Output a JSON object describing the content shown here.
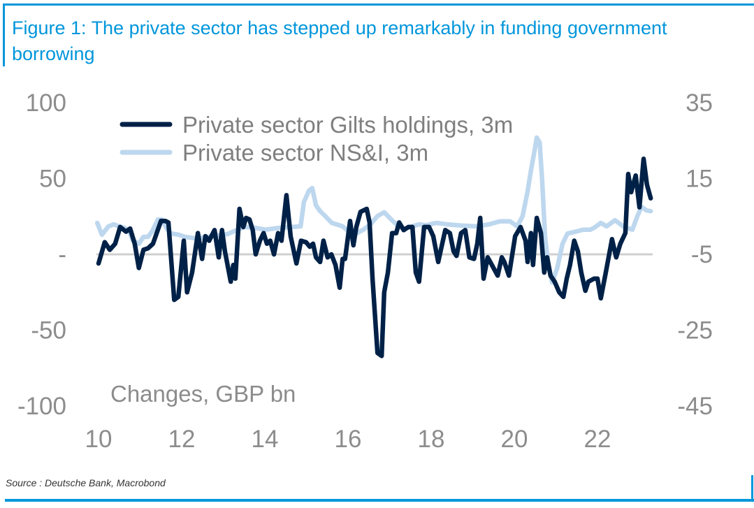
{
  "title": "Figure 1: The private sector has stepped up remarkably in funding government borrowing",
  "source": "Source : Deutsche Bank, Macrobond",
  "colors": {
    "frame": "#0096DB",
    "gilts": "#002147",
    "nsi": "#BDD7EE",
    "zero": "#D0D0D0"
  },
  "chart_data": {
    "type": "line",
    "title": "Figure 1: The private sector has stepped up remarkably in funding government borrowing",
    "unit_label": "Changes, GBP bn",
    "xlabel": "",
    "xlim": [
      10,
      23.5
    ],
    "x_ticks": [
      10,
      12,
      14,
      16,
      18,
      20,
      22
    ],
    "y_left": {
      "lim": [
        -100,
        100
      ],
      "ticks": [
        100,
        50,
        0,
        -50,
        -100
      ],
      "tick_labels": [
        "100",
        "50",
        "-",
        "-50",
        "-100"
      ]
    },
    "y_right": {
      "lim": [
        -45,
        35
      ],
      "ticks": [
        35,
        15,
        -5,
        -25,
        -45
      ],
      "tick_labels": [
        "35",
        "15",
        "-5",
        "-25",
        "-45"
      ]
    },
    "grid": false,
    "legend_position": "top-center",
    "series": [
      {
        "name": "Private sector Gilts holdings, 3m",
        "axis": "left",
        "x": [
          10.0,
          10.15,
          10.27,
          10.4,
          10.52,
          10.66,
          10.76,
          10.87,
          10.97,
          11.08,
          11.19,
          11.31,
          11.5,
          11.61,
          11.68,
          11.82,
          11.92,
          12.05,
          12.13,
          12.25,
          12.39,
          12.49,
          12.57,
          12.66,
          12.79,
          12.89,
          12.97,
          13.04,
          13.18,
          13.24,
          13.29,
          13.39,
          13.48,
          13.55,
          13.63,
          13.71,
          13.78,
          13.88,
          13.97,
          14.05,
          14.13,
          14.22,
          14.32,
          14.4,
          14.52,
          14.62,
          14.76,
          14.87,
          14.99,
          15.08,
          15.16,
          15.23,
          15.33,
          15.41,
          15.51,
          15.6,
          15.7,
          15.8,
          15.87,
          15.93,
          16.05,
          16.13,
          16.2,
          16.3,
          16.45,
          16.52,
          16.59,
          16.71,
          16.81,
          16.87,
          16.96,
          17.06,
          17.16,
          17.23,
          17.34,
          17.45,
          17.55,
          17.63,
          17.71,
          17.83,
          17.95,
          18.05,
          18.17,
          18.25,
          18.34,
          18.45,
          18.54,
          18.61,
          18.72,
          18.82,
          18.92,
          19.03,
          19.11,
          19.18,
          19.26,
          19.36,
          19.46,
          19.6,
          19.7,
          19.76,
          19.87,
          20.02,
          20.15,
          20.27,
          20.32,
          20.4,
          20.45,
          20.54,
          20.64,
          20.72,
          20.79,
          20.87,
          20.97,
          21.08,
          21.18,
          21.26,
          21.34,
          21.44,
          21.53,
          21.61,
          21.71,
          21.78,
          21.92,
          22.0,
          22.08,
          22.2,
          22.35,
          22.45,
          22.55,
          22.67,
          22.74,
          22.81,
          22.92,
          23.01,
          23.11,
          23.19,
          23.28
        ],
        "y": [
          -6,
          8,
          3,
          7,
          18,
          15,
          17,
          7,
          -9,
          3,
          4,
          7,
          22,
          22,
          21,
          -30,
          -28,
          9,
          -25,
          -12,
          14,
          -3,
          12,
          9,
          16,
          -2,
          16,
          2,
          -18,
          -7,
          -16,
          30,
          18,
          24,
          23,
          16,
          0,
          9,
          14,
          7,
          9,
          0,
          14,
          9,
          39,
          12,
          -6,
          9,
          8,
          5,
          7,
          -2,
          -5,
          9,
          -2,
          0,
          -7,
          -22,
          -3,
          -3,
          22,
          6,
          18,
          28,
          30,
          21,
          -16,
          -65,
          -67,
          -25,
          -12,
          14,
          14,
          21,
          16,
          18,
          18,
          -12,
          -18,
          18,
          18,
          12,
          -5,
          5,
          16,
          14,
          2,
          -1,
          14,
          16,
          -2,
          -3,
          7,
          24,
          -16,
          -2,
          -7,
          -14,
          -2,
          -5,
          -14,
          12,
          18,
          9,
          -5,
          14,
          -7,
          24,
          14,
          -12,
          -2,
          -14,
          -18,
          -25,
          -28,
          -16,
          -7,
          9,
          2,
          -12,
          -24,
          -18,
          -16,
          -16,
          -29,
          -12,
          10,
          -2,
          7,
          14,
          53,
          41,
          52,
          31,
          63,
          46,
          37
        ]
      },
      {
        "name": "Private sector NS&I, 3m",
        "axis": "right",
        "x": [
          9.97,
          10.08,
          10.24,
          10.37,
          10.49,
          10.62,
          10.74,
          10.82,
          10.97,
          11.08,
          11.19,
          11.29,
          11.43,
          11.53,
          11.63,
          11.75,
          11.92,
          12.08,
          12.34,
          12.59,
          12.84,
          13.09,
          13.26,
          13.34,
          13.51,
          13.76,
          14.02,
          14.35,
          14.66,
          14.86,
          14.94,
          15.06,
          15.14,
          15.23,
          15.33,
          15.45,
          15.61,
          15.87,
          16.03,
          16.2,
          16.37,
          16.54,
          16.71,
          16.87,
          17.04,
          17.21,
          17.38,
          17.55,
          17.71,
          17.88,
          18.13,
          18.39,
          18.72,
          19.06,
          19.39,
          19.65,
          19.9,
          20.07,
          20.2,
          20.32,
          20.4,
          20.49,
          20.54,
          20.61,
          20.67,
          20.74,
          20.82,
          20.91,
          21.03,
          21.16,
          21.28,
          21.44,
          21.66,
          21.83,
          21.92,
          22.08,
          22.22,
          22.42,
          22.64,
          22.84,
          22.96,
          23.06,
          23.18,
          23.28
        ],
        "y": [
          3.3,
          0.2,
          2.4,
          2.9,
          2.4,
          2.0,
          1.1,
          -1.3,
          -2.2,
          -0.4,
          -0.4,
          1.1,
          4.2,
          4.2,
          2.0,
          0.5,
          0.2,
          -0.4,
          -0.8,
          -0.4,
          0.0,
          0.3,
          1.1,
          1.5,
          2.2,
          2.0,
          1.5,
          2.0,
          2.2,
          2.4,
          8.8,
          11.8,
          12.5,
          7.9,
          6.4,
          5.1,
          3.3,
          2.4,
          0.9,
          0.5,
          1.5,
          2.9,
          5.1,
          6.1,
          4.2,
          2.4,
          1.8,
          2.4,
          2.9,
          2.7,
          3.3,
          2.9,
          2.6,
          2.4,
          2.9,
          3.7,
          3.7,
          2.4,
          5.1,
          11.6,
          17.1,
          22.6,
          25.8,
          24.5,
          14.4,
          -0.4,
          -7.8,
          -12.4,
          -8.7,
          -2.2,
          0.5,
          0.9,
          1.5,
          1.5,
          2.0,
          3.3,
          2.4,
          4.0,
          2.2,
          1.5,
          5.1,
          7.5,
          6.6,
          6.4
        ]
      }
    ]
  }
}
